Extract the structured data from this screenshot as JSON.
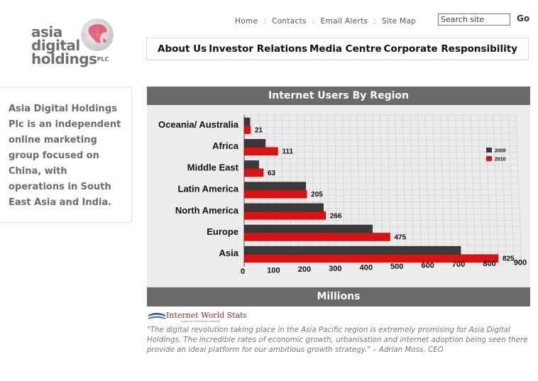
{
  "logo": {
    "line1": "asia",
    "line2": "digital",
    "line3": "holdings",
    "suffix": "PLC"
  },
  "top_links": [
    "Home",
    "Contacts",
    "Email Alerts",
    "Site Map"
  ],
  "search": {
    "value": "Search site",
    "button_label": "Go"
  },
  "main_nav": [
    "About Us",
    "Investor Relations",
    "Media Centre",
    "Corporate Responsibility"
  ],
  "sidebar_text": "Asia Digital Holdings Plc is an independent online marketing group focused on China, with operations in South East Asia and India.",
  "chart_data": {
    "type": "bar",
    "title": "Internet Users By Region",
    "xlabel": "Millions",
    "categories": [
      "Oceania/ Australia",
      "Africa",
      "Middle East",
      "Latin America",
      "North America",
      "Europe",
      "Asia"
    ],
    "series": [
      {
        "name": "2009",
        "color": "#3a3a3a",
        "values": [
          19,
          70,
          48,
          202,
          259,
          418,
          704
        ]
      },
      {
        "name": "2010",
        "color": "#e01010",
        "values": [
          21,
          111,
          63,
          205,
          266,
          475,
          825
        ]
      }
    ],
    "data_labels": [
      "21",
      "111",
      "63",
      "205",
      "266",
      "475",
      "825"
    ],
    "xlim": [
      0,
      900
    ],
    "xticks": [
      "0",
      "100",
      "200",
      "300",
      "400",
      "500",
      "600",
      "700",
      "800",
      "900"
    ],
    "legend": "right",
    "grid": true
  },
  "source_logo": {
    "name": "Internet World Stats",
    "tagline": "Usage and Population Statistics"
  },
  "quote": "\"The digital revolution taking place in the Asia Pacific region is extremely promising for Asia Digital Holdings. The incredible rates of economic growth, urbanisation and internet adoption being seen there provide an ideal platform for our ambitious growth strategy.\" – Adrian Moss, CEO"
}
